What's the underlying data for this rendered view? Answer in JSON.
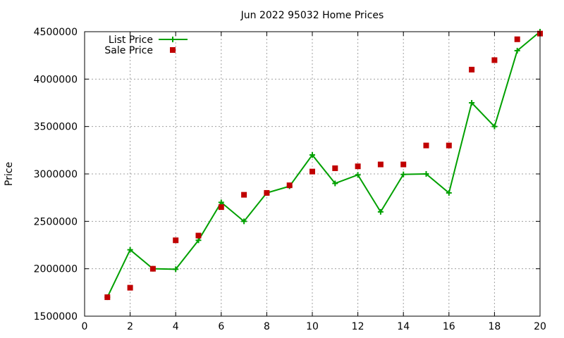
{
  "chart_data": {
    "type": "line",
    "title": "Jun 2022 95032 Home Prices",
    "xlabel": "",
    "ylabel": "Price",
    "xlim": [
      0,
      20
    ],
    "ylim": [
      1500000,
      4500000
    ],
    "xticks": [
      0,
      2,
      4,
      6,
      8,
      10,
      12,
      14,
      16,
      18,
      20
    ],
    "yticks": [
      1500000,
      2000000,
      2500000,
      3000000,
      3500000,
      4000000,
      4500000
    ],
    "grid": true,
    "legend_position": "top-left",
    "x": [
      1,
      2,
      3,
      4,
      5,
      6,
      7,
      8,
      9,
      10,
      11,
      12,
      13,
      14,
      15,
      16,
      17,
      18,
      19,
      20
    ],
    "series": [
      {
        "name": "List Price",
        "style": "line+points",
        "color": "#00a000",
        "values": [
          1700000,
          2200000,
          2000000,
          1995000,
          2300000,
          2700000,
          2500000,
          2800000,
          2870000,
          3200000,
          2900000,
          2990000,
          2600000,
          2995000,
          3000000,
          2800000,
          3750000,
          3500000,
          4300000,
          4500000
        ]
      },
      {
        "name": "Sale Price",
        "style": "points",
        "color": "#c00000",
        "values": [
          1700000,
          1800000,
          2000000,
          2300000,
          2350000,
          2650000,
          2780000,
          2800000,
          2880000,
          3025000,
          3060000,
          3080000,
          3100000,
          3100000,
          3300000,
          3300000,
          4100000,
          4200000,
          4420000,
          4480000
        ]
      }
    ]
  }
}
